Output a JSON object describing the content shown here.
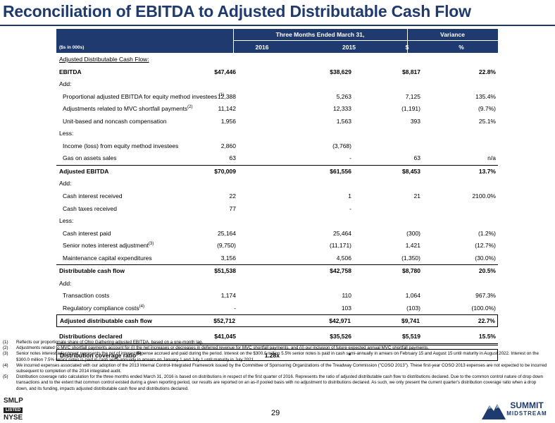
{
  "title": "Reconciliation of EBITDA to Adjusted Distributable Cash Flow",
  "header": {
    "period": "Three Months Ended March 31,",
    "variance": "Variance",
    "units": "($s in 000s)",
    "col_2016": "2016",
    "col_2015": "2015",
    "col_dollar": "$",
    "col_pct": "%"
  },
  "rows": [
    {
      "label": "Adjusted Distributable Cash Flow:",
      "v": [
        "",
        "",
        "",
        ""
      ]
    },
    {
      "label": "EBITDA",
      "v": [
        "$47,446",
        "$38,629",
        "$8,817",
        "22.8%"
      ]
    },
    {
      "label": "Add:",
      "v": [
        "",
        "",
        "",
        ""
      ]
    },
    {
      "label": "Proportional adjusted EBITDA for equity method investees",
      "sup": "(1)",
      "v": [
        "12,388",
        "5,263",
        "7,125",
        "135.4%"
      ]
    },
    {
      "label": "Adjustments related to MVC shortfall payments",
      "sup": "(2)",
      "v": [
        "11,142",
        "12,333",
        "(1,191)",
        "(9.7%)"
      ]
    },
    {
      "label": "Unit-based and noncash compensation",
      "v": [
        "1,956",
        "1,563",
        "393",
        "25.1%"
      ]
    },
    {
      "label": "Less:",
      "v": [
        "",
        "",
        "",
        ""
      ]
    },
    {
      "label": "Income (loss) from equity method investees",
      "v": [
        "2,860",
        "(3,768)",
        "",
        ""
      ]
    },
    {
      "label": "Gas on assets sales",
      "v": [
        "63",
        "-",
        "63",
        "n/a"
      ]
    },
    {
      "label": "Adjusted EBITDA",
      "v": [
        "$70,009",
        "$61,556",
        "$8,453",
        "13.7%"
      ]
    },
    {
      "label": "Add:",
      "v": [
        "",
        "",
        "",
        ""
      ]
    },
    {
      "label": "Cash interest received",
      "v": [
        "22",
        "1",
        "21",
        "2100.0%"
      ]
    },
    {
      "label": "Cash taxes received",
      "v": [
        "77",
        "-",
        "",
        ""
      ]
    },
    {
      "label": "Less:",
      "v": [
        "",
        "",
        "",
        ""
      ]
    },
    {
      "label": "Cash interest paid",
      "v": [
        "25,164",
        "25,464",
        "(300)",
        "(1.2%)"
      ]
    },
    {
      "label": "Senior notes interest adjustment",
      "sup": "(3)",
      "v": [
        "(9,750)",
        "(11,171)",
        "1,421",
        "(12.7%)"
      ]
    },
    {
      "label": "Maintenance capital expenditures",
      "v": [
        "3,156",
        "4,506",
        "(1,350)",
        "(30.0%)"
      ]
    },
    {
      "label": "Distributable cash flow",
      "v": [
        "$51,538",
        "$42,758",
        "$8,780",
        "20.5%"
      ]
    },
    {
      "label": "Add:",
      "v": [
        "",
        "",
        "",
        ""
      ]
    },
    {
      "label": "Transaction costs",
      "v": [
        "1,174",
        "110",
        "1,064",
        "967.3%"
      ]
    },
    {
      "label": "Regulatory compliance costs",
      "sup": "(4)",
      "v": [
        "-",
        "103",
        "(103)",
        "(100.0%)"
      ]
    },
    {
      "label": "Adjusted distributable cash flow",
      "v": [
        "$52,712",
        "$42,971",
        "$9,741",
        "22.7%"
      ]
    },
    {
      "label": "Distributions declared",
      "v": [
        "$41,045",
        "$35,526",
        "$5,519",
        "15.5%"
      ]
    },
    {
      "label": "Distribution coverage ratio",
      "sup": "(5)",
      "v": [
        "1.28x",
        "*",
        "",
        ""
      ]
    }
  ],
  "footnotes": [
    {
      "num": "(1)",
      "text": "Reflects our proportionate share of Ohio Gathering adjusted EBITDA, based on a one-month lag."
    },
    {
      "num": "(2)",
      "text": "Adjustments related to MVC shortfall payments account for (i) the net increases or decreases in deferred revenue for MVC shortfall payments, and (ii) our inclusion of future expected annual MVC shortfall payments."
    },
    {
      "num": "(3)",
      "text": "Senior notes interest adjustment represents the net of interest expense accrued and paid during the period. Interest on the $300.0 million 5.5% senior notes is paid in cash semi-annually in arrears on February 15 and August 15 until maturity in August 2022. Interest on the $300.0 million 7.5% senior notes is paid in cash semi-annually in arrears on January 1 and July 1 until maturity in July 2021."
    },
    {
      "num": "(4)",
      "text": "We incurred expenses associated with our adoption of the 2013 Internal Control-Integrated Framework issued by the Committee of Sponsoring Organizations of the Treadway Commission (\"COSO 2013\"). These first-year COSO 2013 expenses are not expected to be incurred subsequent to completion of the 2014 integrated audit."
    },
    {
      "num": "(5)",
      "text": "Distribution coverage ratio calculation for the three months ended March 31, 2016 is based on distributions in respect of the first quarter of 2016. Represents the ratio of adjusted distributable cash flow to distributions declared. Due to the common control nature of drop down transactions and to the extent that common control existed during a given reporting period, our results are reported on an as-if pooled basis with no adjustment to distributions declared. As such, we only present the current quarter's distribution coverage ratio when a drop down, and its funding, impacts adjusted distributable cash flow and distributions declared."
    }
  ],
  "page_number": "29",
  "ticker": {
    "symbol": "SMLP",
    "listed": "LISTED",
    "exchange": "NYSE"
  },
  "logo": {
    "name": "SUMMIT",
    "sub": "MIDSTREAM"
  },
  "colors": {
    "brand": "#1f3a6e"
  }
}
